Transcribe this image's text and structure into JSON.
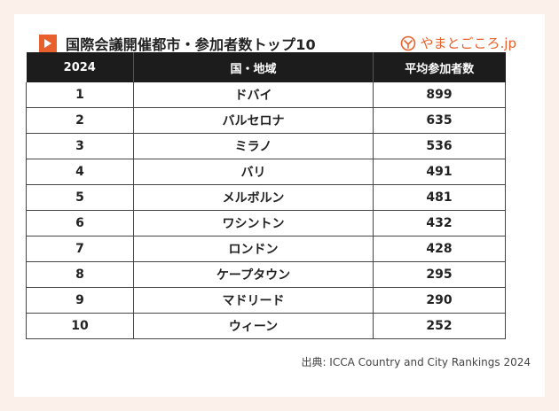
{
  "title": "国際会議開催都市・参加者数トップ10",
  "brand": {
    "name": "やまとごころ.jp",
    "icon": "yamatogokoro-logo-icon",
    "color": "#e8612c"
  },
  "accent_color": "#e8612c",
  "table": {
    "headers": [
      "2024",
      "国・地域",
      "平均参加者数"
    ],
    "rows": [
      [
        "1",
        "ドバイ",
        "899"
      ],
      [
        "2",
        "バルセロナ",
        "635"
      ],
      [
        "3",
        "ミラノ",
        "536"
      ],
      [
        "4",
        "バリ",
        "491"
      ],
      [
        "5",
        "メルボルン",
        "481"
      ],
      [
        "6",
        "ワシントン",
        "432"
      ],
      [
        "7",
        "ロンドン",
        "428"
      ],
      [
        "8",
        "ケープタウン",
        "295"
      ],
      [
        "9",
        "マドリード",
        "290"
      ],
      [
        "10",
        "ウィーン",
        "252"
      ]
    ]
  },
  "source": "出典: ICCA Country and City Rankings 2024"
}
